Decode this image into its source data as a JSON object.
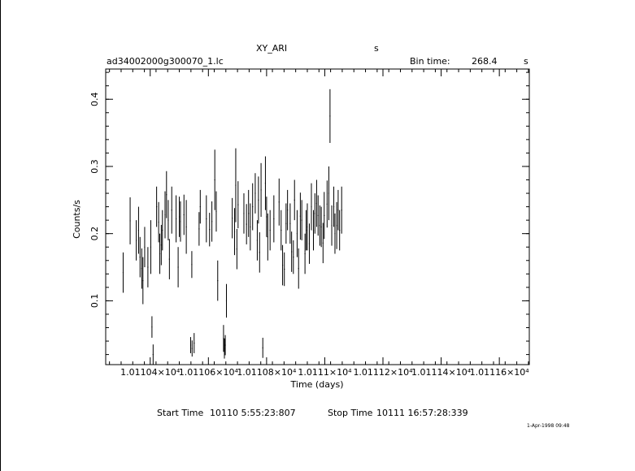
{
  "header": {
    "object": "XY_ARI",
    "unit_s": "s",
    "filename": "ad34002000g300070_1.lc",
    "bin_label": "Bin time:",
    "bin_value": "268.4",
    "bin_unit": "s"
  },
  "footer": {
    "start_label": "Start Time",
    "start_value": "10110  5:55:23:807",
    "stop_label": "Stop Time",
    "stop_value": "10111 16:57:28:339",
    "timestamp": "1-Apr-1998 09:48"
  },
  "chart_data": {
    "type": "scatter",
    "xlabel": "Time (days)",
    "ylabel": "Counts/s",
    "xlim": [
      10110.247,
      10111.703
    ],
    "ylim": [
      0.005,
      0.445
    ],
    "xticks": [
      10110.4,
      10110.6,
      10110.8,
      10111.0,
      10111.2,
      10111.4,
      10111.6
    ],
    "xtick_labels": [
      "1.01104×10⁴",
      "1.01106×10⁴",
      "1.01108×10⁴",
      "1.0111×10⁴",
      "1.01112×10⁴",
      "1.01114×10⁴",
      "1.01116×10⁴"
    ],
    "yticks": [
      0.1,
      0.2,
      0.3,
      0.4
    ],
    "ytick_labels": [
      "0.1",
      "0.2",
      "0.3",
      "0.4"
    ],
    "xerr_days": 0.0016,
    "points": [
      [
        10110.307,
        0.142,
        0.03
      ],
      [
        10110.331,
        0.219,
        0.035
      ],
      [
        10110.352,
        0.19,
        0.03
      ],
      [
        10110.36,
        0.205,
        0.035
      ],
      [
        10110.365,
        0.165,
        0.03
      ],
      [
        10110.371,
        0.148,
        0.03
      ],
      [
        10110.375,
        0.13,
        0.035
      ],
      [
        10110.381,
        0.18,
        0.03
      ],
      [
        10110.392,
        0.15,
        0.03
      ],
      [
        10110.402,
        0.18,
        0.04
      ],
      [
        10110.406,
        0.061,
        0.016
      ],
      [
        10110.41,
        0.02,
        0.015
      ],
      [
        10110.422,
        0.24,
        0.03
      ],
      [
        10110.429,
        0.217,
        0.03
      ],
      [
        10110.433,
        0.17,
        0.03
      ],
      [
        10110.438,
        0.183,
        0.03
      ],
      [
        10110.442,
        0.205,
        0.03
      ],
      [
        10110.451,
        0.228,
        0.035
      ],
      [
        10110.456,
        0.258,
        0.035
      ],
      [
        10110.462,
        0.22,
        0.03
      ],
      [
        10110.466,
        0.162,
        0.03
      ],
      [
        10110.474,
        0.235,
        0.035
      ],
      [
        10110.489,
        0.222,
        0.035
      ],
      [
        10110.496,
        0.15,
        0.03
      ],
      [
        10110.5,
        0.225,
        0.03
      ],
      [
        10110.504,
        0.218,
        0.03
      ],
      [
        10110.516,
        0.228,
        0.03
      ],
      [
        10110.524,
        0.21,
        0.04
      ],
      [
        10110.543,
        0.154,
        0.02
      ],
      [
        10110.539,
        0.034,
        0.012
      ],
      [
        10110.544,
        0.029,
        0.012
      ],
      [
        10110.551,
        0.037,
        0.015
      ],
      [
        10110.568,
        0.207,
        0.025
      ],
      [
        10110.572,
        0.24,
        0.025
      ],
      [
        10110.593,
        0.222,
        0.035
      ],
      [
        10110.604,
        0.206,
        0.025
      ],
      [
        10110.612,
        0.218,
        0.03
      ],
      [
        10110.622,
        0.28,
        0.045
      ],
      [
        10110.627,
        0.233,
        0.03
      ],
      [
        10110.632,
        0.13,
        0.03
      ],
      [
        10110.652,
        0.044,
        0.02
      ],
      [
        10110.655,
        0.029,
        0.015
      ],
      [
        10110.658,
        0.034,
        0.015
      ],
      [
        10110.662,
        0.1,
        0.025
      ],
      [
        10110.682,
        0.223,
        0.03
      ],
      [
        10110.69,
        0.203,
        0.035
      ],
      [
        10110.694,
        0.272,
        0.055
      ],
      [
        10110.698,
        0.177,
        0.03
      ],
      [
        10110.702,
        0.243,
        0.035
      ],
      [
        10110.722,
        0.23,
        0.03
      ],
      [
        10110.731,
        0.214,
        0.03
      ],
      [
        10110.738,
        0.23,
        0.035
      ],
      [
        10110.744,
        0.21,
        0.035
      ],
      [
        10110.752,
        0.24,
        0.035
      ],
      [
        10110.761,
        0.26,
        0.03
      ],
      [
        10110.768,
        0.19,
        0.03
      ],
      [
        10110.772,
        0.25,
        0.035
      ],
      [
        10110.776,
        0.172,
        0.03
      ],
      [
        10110.781,
        0.265,
        0.04
      ],
      [
        10110.787,
        0.03,
        0.015
      ],
      [
        10110.796,
        0.275,
        0.04
      ],
      [
        10110.8,
        0.225,
        0.03
      ],
      [
        10110.804,
        0.195,
        0.035
      ],
      [
        10110.812,
        0.205,
        0.03
      ],
      [
        10110.825,
        0.222,
        0.035
      ],
      [
        10110.843,
        0.247,
        0.035
      ],
      [
        10110.85,
        0.205,
        0.03
      ],
      [
        10110.855,
        0.153,
        0.03
      ],
      [
        10110.861,
        0.147,
        0.025
      ],
      [
        10110.867,
        0.215,
        0.03
      ],
      [
        10110.872,
        0.235,
        0.03
      ],
      [
        10110.881,
        0.215,
        0.03
      ],
      [
        10110.886,
        0.173,
        0.03
      ],
      [
        10110.892,
        0.165,
        0.025
      ],
      [
        10110.896,
        0.25,
        0.03
      ],
      [
        10110.905,
        0.2,
        0.035
      ],
      [
        10110.91,
        0.148,
        0.03
      ],
      [
        10110.916,
        0.226,
        0.035
      ],
      [
        10110.921,
        0.22,
        0.03
      ],
      [
        10110.932,
        0.17,
        0.03
      ],
      [
        10110.936,
        0.205,
        0.03
      ],
      [
        10110.94,
        0.21,
        0.035
      ],
      [
        10110.947,
        0.185,
        0.03
      ],
      [
        10110.954,
        0.24,
        0.035
      ],
      [
        10110.961,
        0.205,
        0.03
      ],
      [
        10110.966,
        0.23,
        0.03
      ],
      [
        10110.972,
        0.245,
        0.035
      ],
      [
        10110.977,
        0.227,
        0.03
      ],
      [
        10110.983,
        0.212,
        0.03
      ],
      [
        10110.988,
        0.21,
        0.03
      ],
      [
        10110.994,
        0.186,
        0.03
      ],
      [
        10110.998,
        0.227,
        0.035
      ],
      [
        10111.008,
        0.244,
        0.035
      ],
      [
        10111.014,
        0.26,
        0.04
      ],
      [
        10111.018,
        0.375,
        0.04
      ],
      [
        10111.024,
        0.212,
        0.03
      ],
      [
        10111.031,
        0.24,
        0.03
      ],
      [
        10111.035,
        0.2,
        0.03
      ],
      [
        10111.041,
        0.212,
        0.035
      ],
      [
        10111.046,
        0.235,
        0.03
      ],
      [
        10111.051,
        0.205,
        0.03
      ],
      [
        10111.058,
        0.235,
        0.035
      ]
    ]
  }
}
